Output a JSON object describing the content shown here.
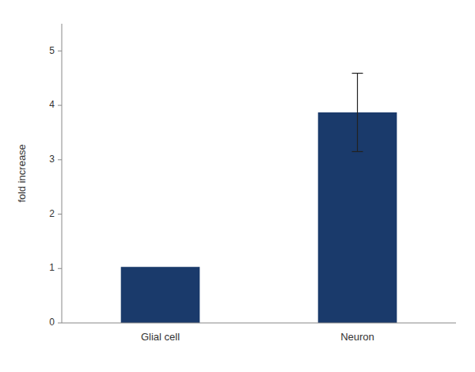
{
  "chart_data": {
    "type": "bar",
    "categories": [
      "Glial cell",
      "Neuron"
    ],
    "values": [
      1.03,
      3.87
    ],
    "errors": [
      0.0,
      0.72
    ],
    "color": "#1a3a6b",
    "ylabel": "fold increase",
    "ylim": [
      0,
      5.5
    ],
    "yticks": [
      0,
      1,
      2,
      3,
      4,
      5
    ],
    "grid": false
  }
}
